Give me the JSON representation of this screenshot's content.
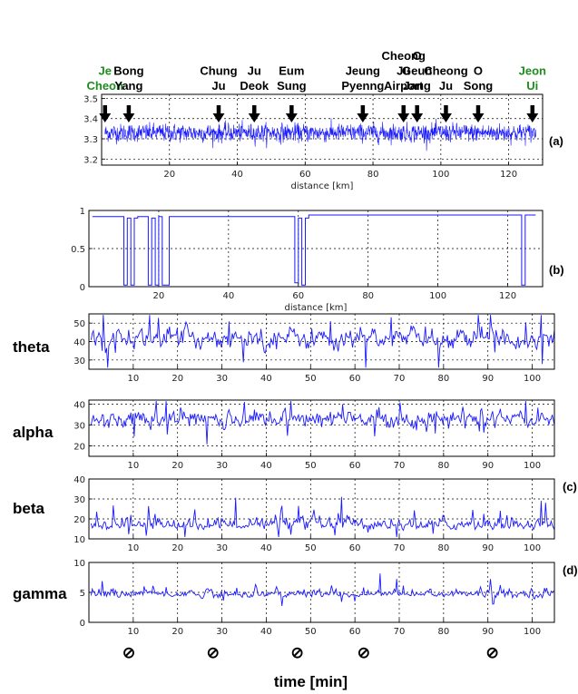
{
  "chart_data": [
    {
      "panel": "(a)",
      "type": "line",
      "xlabel": "distance [km]",
      "ylabel": "",
      "xlim": [
        0,
        130
      ],
      "ylim": [
        3.17,
        3.52
      ],
      "xticks": [
        20,
        40,
        60,
        80,
        100,
        120
      ],
      "yticks": [
        3.2,
        3.3,
        3.4,
        3.5
      ],
      "grid": true,
      "color": "#1a1aff",
      "series": {
        "mean": 3.33,
        "amplitude": 0.08,
        "range_km": [
          1,
          128
        ]
      },
      "annotations": [
        {
          "lines": [
            "Je",
            "Cheon"
          ],
          "x_km": 1,
          "color": "#1e8c1e"
        },
        {
          "lines": [
            "Bong",
            "Yang"
          ],
          "x_km": 8,
          "color": "#000000"
        },
        {
          "lines": [
            "Chung",
            "Ju"
          ],
          "x_km": 34.5,
          "color": "#000000"
        },
        {
          "lines": [
            "Ju",
            "Deok"
          ],
          "x_km": 45,
          "color": "#000000"
        },
        {
          "lines": [
            "Eum",
            "Sung"
          ],
          "x_km": 56,
          "color": "#000000"
        },
        {
          "lines": [
            "Jeung",
            "Pyenng"
          ],
          "x_km": 77,
          "color": "#000000"
        },
        {
          "lines": [
            "Cheong",
            "Ju",
            "Airport"
          ],
          "x_km": 89,
          "color": "#000000"
        },
        {
          "lines": [
            "O",
            "Geun",
            "Jang"
          ],
          "x_km": 93,
          "color": "#000000"
        },
        {
          "lines": [
            "Cheong",
            "Ju"
          ],
          "x_km": 101.5,
          "color": "#000000"
        },
        {
          "lines": [
            "O",
            "Song"
          ],
          "x_km": 111,
          "color": "#000000"
        },
        {
          "lines": [
            "Jeon",
            "Ui"
          ],
          "x_km": 127,
          "color": "#1e8c1e"
        }
      ]
    },
    {
      "panel": "(b)",
      "type": "line",
      "xlabel": "distance [km]",
      "xlim": [
        0,
        130
      ],
      "ylim": [
        0,
        1
      ],
      "xticks": [
        20,
        40,
        60,
        80,
        100,
        120
      ],
      "yticks": [
        0,
        0.5,
        1
      ],
      "ytick_labels": [
        "0",
        "0.5",
        "1"
      ],
      "grid": true,
      "color": "#1a1aff",
      "x": [
        1,
        10,
        10,
        11,
        11,
        12,
        12,
        13,
        13,
        14,
        14,
        17,
        17,
        18,
        18,
        19,
        19,
        20,
        20,
        21,
        21,
        23,
        23,
        59,
        59,
        60,
        60,
        61,
        61,
        62,
        62,
        63,
        63,
        65,
        65,
        124,
        124,
        125,
        125,
        128
      ],
      "y": [
        0.92,
        0.92,
        0.02,
        0.02,
        0.9,
        0.9,
        0.02,
        0.02,
        0.9,
        0.9,
        0.92,
        0.92,
        0.02,
        0.02,
        0.9,
        0.9,
        0.02,
        0.02,
        0.92,
        0.92,
        0.02,
        0.02,
        0.92,
        0.92,
        0.05,
        0.05,
        0.9,
        0.9,
        0.02,
        0.02,
        0.9,
        0.9,
        0.94,
        0.94,
        0.94,
        0.94,
        0.02,
        0.02,
        0.94,
        0.94
      ]
    },
    {
      "panel": "theta",
      "label": "theta",
      "type": "line",
      "xlim": [
        0,
        105
      ],
      "ylim": [
        25,
        55
      ],
      "xticks": [
        10,
        20,
        30,
        40,
        50,
        60,
        70,
        80,
        90,
        100
      ],
      "yticks": [
        30,
        40,
        50
      ],
      "grid": true,
      "color": "#1a1aff",
      "series": {
        "mean": 42,
        "amplitude": 4
      }
    },
    {
      "panel": "alpha",
      "label": "alpha",
      "type": "line",
      "xlim": [
        0,
        105
      ],
      "ylim": [
        15,
        42
      ],
      "xticks": [
        10,
        20,
        30,
        40,
        50,
        60,
        70,
        80,
        90,
        100
      ],
      "yticks": [
        20,
        30,
        40
      ],
      "grid": true,
      "color": "#1a1aff",
      "series": {
        "mean": 33,
        "amplitude": 3
      }
    },
    {
      "panel": "beta",
      "label": "beta",
      "type": "line",
      "xlim": [
        0,
        105
      ],
      "ylim": [
        10,
        40
      ],
      "xticks": [
        10,
        20,
        30,
        40,
        50,
        60,
        70,
        80,
        90,
        100
      ],
      "yticks": [
        10,
        20,
        30,
        40
      ],
      "grid": true,
      "color": "#1a1aff",
      "series": {
        "mean": 17,
        "amplitude": 3
      }
    },
    {
      "panel": "gamma",
      "label": "gamma",
      "type": "line",
      "xlim": [
        0,
        105
      ],
      "ylim": [
        0,
        10
      ],
      "xticks": [
        10,
        20,
        30,
        40,
        50,
        60,
        70,
        80,
        90,
        100
      ],
      "yticks": [
        0,
        5,
        10
      ],
      "grid": true,
      "color": "#1a1aff",
      "series": {
        "mean": 4.7,
        "amplitude": 0.7
      }
    }
  ],
  "panel_labels": {
    "a": "(a)",
    "b": "(b)",
    "c": "(c)",
    "d": "(d)"
  },
  "eeg_xlabel": "time [min]",
  "null_symbol": "⊘",
  "null_symbol_minutes": [
    9,
    28,
    47,
    62,
    91
  ]
}
